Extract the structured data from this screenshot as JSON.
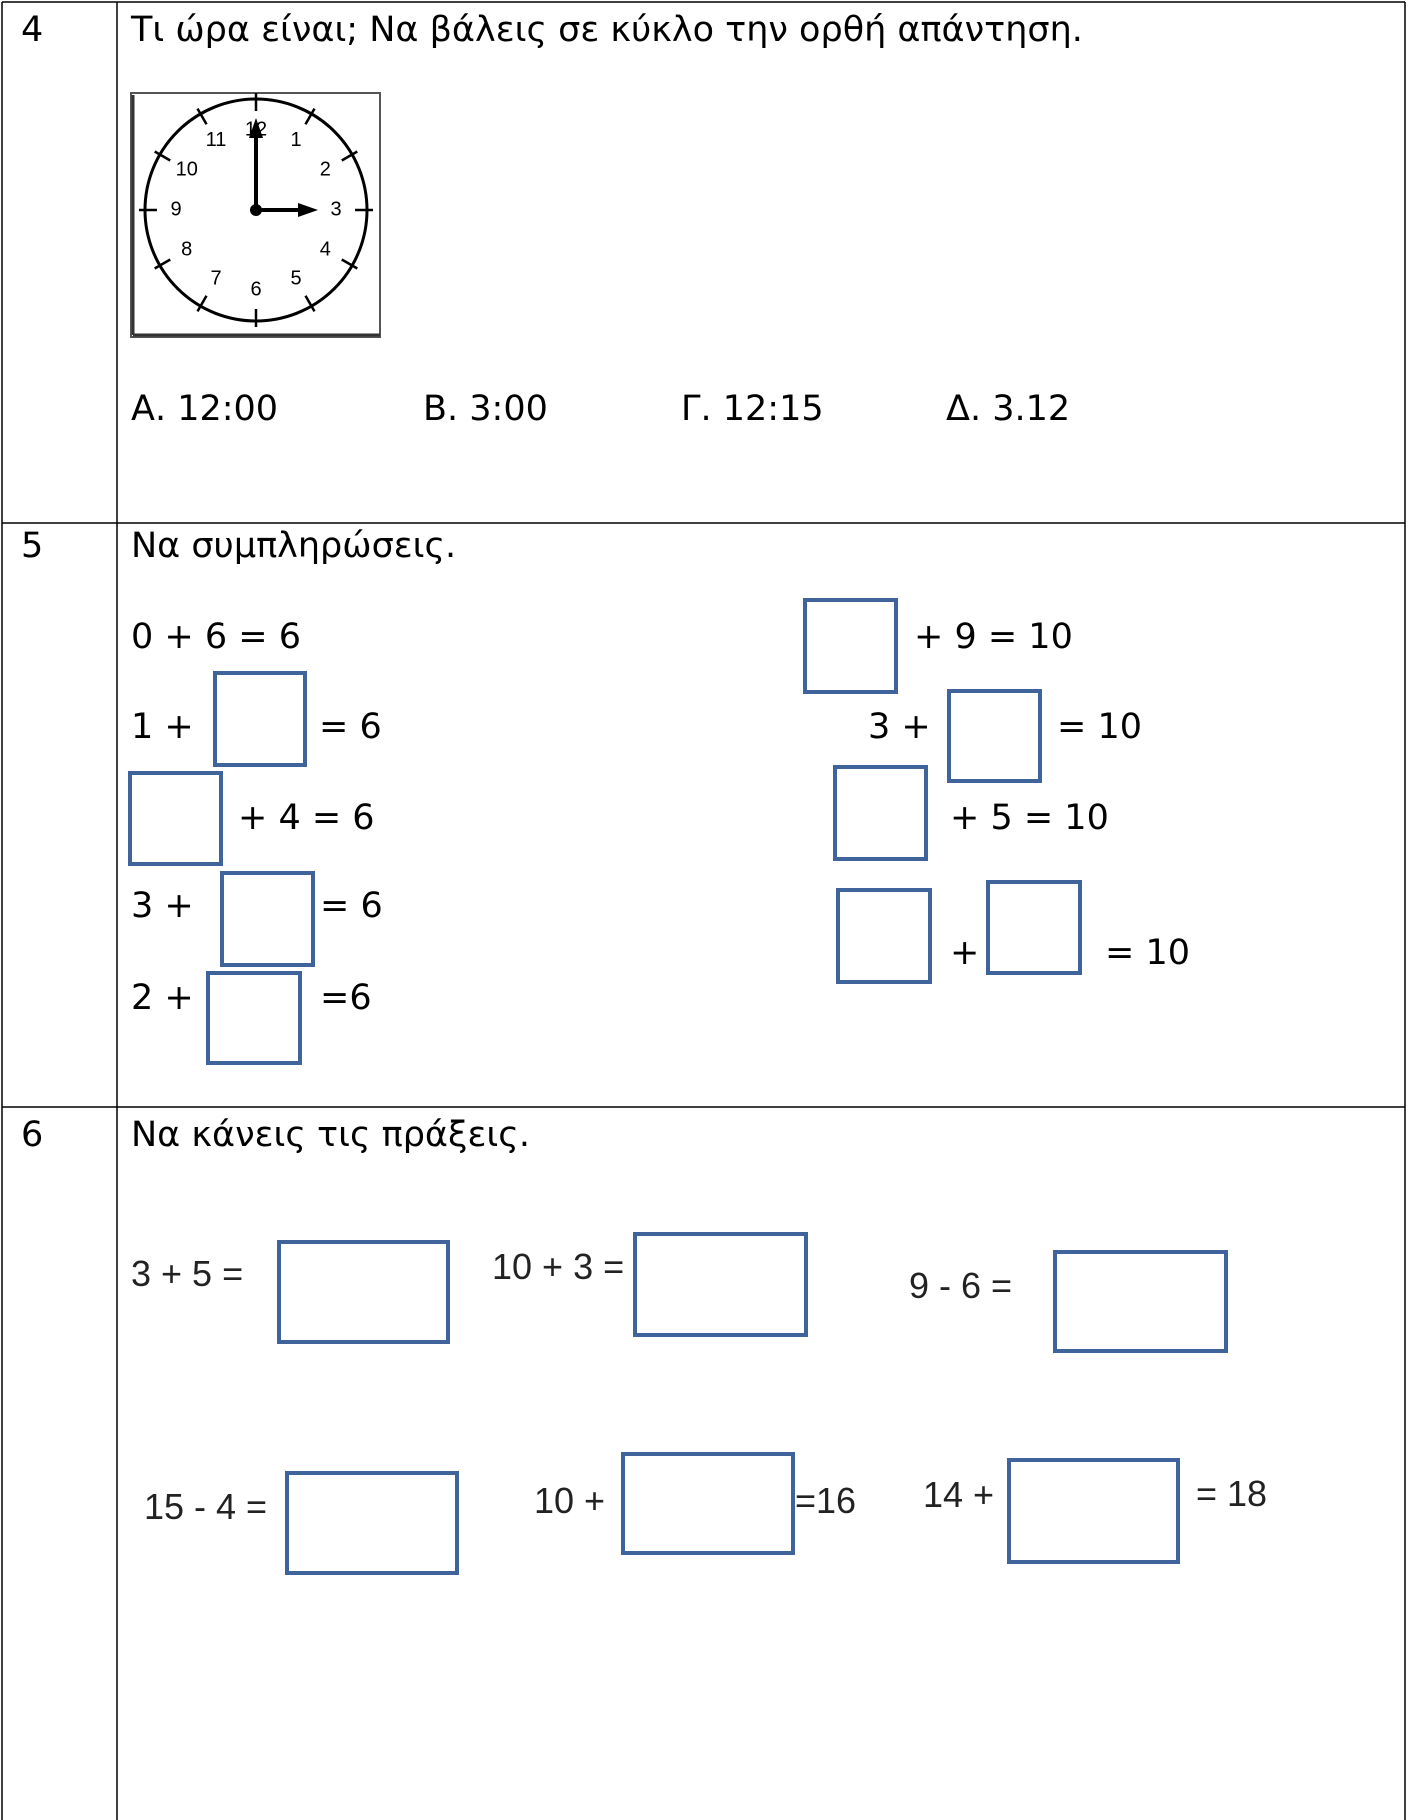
{
  "rows": [
    {
      "number": "4",
      "question": "Τι ώρα είναι; Να βάλεις σε κύκλο την ορθή απάντηση.",
      "clock_numbers": [
        "1",
        "2",
        "3",
        "4",
        "5",
        "6",
        "7",
        "8",
        "9",
        "10",
        "11",
        "12"
      ],
      "options": [
        "Α. 12:00",
        "Β. 3:00",
        "Γ. 12:15",
        "Δ. 3.12"
      ]
    },
    {
      "number": "5",
      "question": "Να συμπληρώσεις.",
      "left": [
        "0 + 6 = 6",
        "1  +",
        "= 6",
        "+ 4 = 6",
        "3  +",
        "= 6",
        "2 +",
        "=6"
      ],
      "right": [
        "+ 9 = 10",
        "3 +",
        "= 10",
        "+ 5 = 10",
        "+",
        "= 10"
      ]
    },
    {
      "number": "6",
      "question": "Να κάνεις τις πράξεις.",
      "items": [
        "3 + 5 =",
        "10 + 3 =",
        "9 - 6 =",
        "15 - 4 =",
        "10 +",
        "=16",
        "14 +",
        "= 18"
      ]
    }
  ]
}
